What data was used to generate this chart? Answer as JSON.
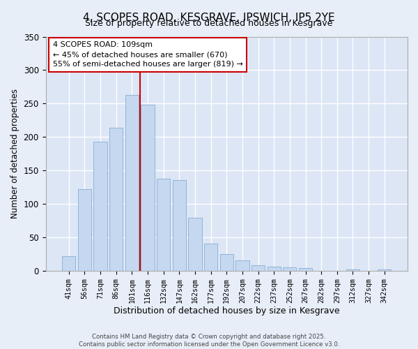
{
  "title": "4, SCOPES ROAD, KESGRAVE, IPSWICH, IP5 2YE",
  "subtitle": "Size of property relative to detached houses in Kesgrave",
  "xlabel": "Distribution of detached houses by size in Kesgrave",
  "ylabel": "Number of detached properties",
  "categories": [
    "41sqm",
    "56sqm",
    "71sqm",
    "86sqm",
    "101sqm",
    "116sqm",
    "132sqm",
    "147sqm",
    "162sqm",
    "177sqm",
    "192sqm",
    "207sqm",
    "222sqm",
    "237sqm",
    "252sqm",
    "267sqm",
    "282sqm",
    "297sqm",
    "312sqm",
    "327sqm",
    "342sqm"
  ],
  "values": [
    22,
    122,
    193,
    214,
    263,
    248,
    138,
    136,
    79,
    41,
    25,
    16,
    9,
    6,
    5,
    4,
    0,
    0,
    2,
    0,
    2
  ],
  "bar_color": "#c5d8f0",
  "bar_edge_color": "#90b4d8",
  "background_color": "#e8eef8",
  "plot_bg_color": "#dce6f5",
  "grid_color": "#ffffff",
  "property_line_color": "#cc0000",
  "annotation_text": "4 SCOPES ROAD: 109sqm\n← 45% of detached houses are smaller (670)\n55% of semi-detached houses are larger (819) →",
  "annotation_box_color": "#ffffff",
  "annotation_box_edge": "#cc0000",
  "ylim": [
    0,
    350
  ],
  "yticks": [
    0,
    50,
    100,
    150,
    200,
    250,
    300,
    350
  ],
  "footer1": "Contains HM Land Registry data © Crown copyright and database right 2025.",
  "footer2": "Contains public sector information licensed under the Open Government Licence v3.0."
}
